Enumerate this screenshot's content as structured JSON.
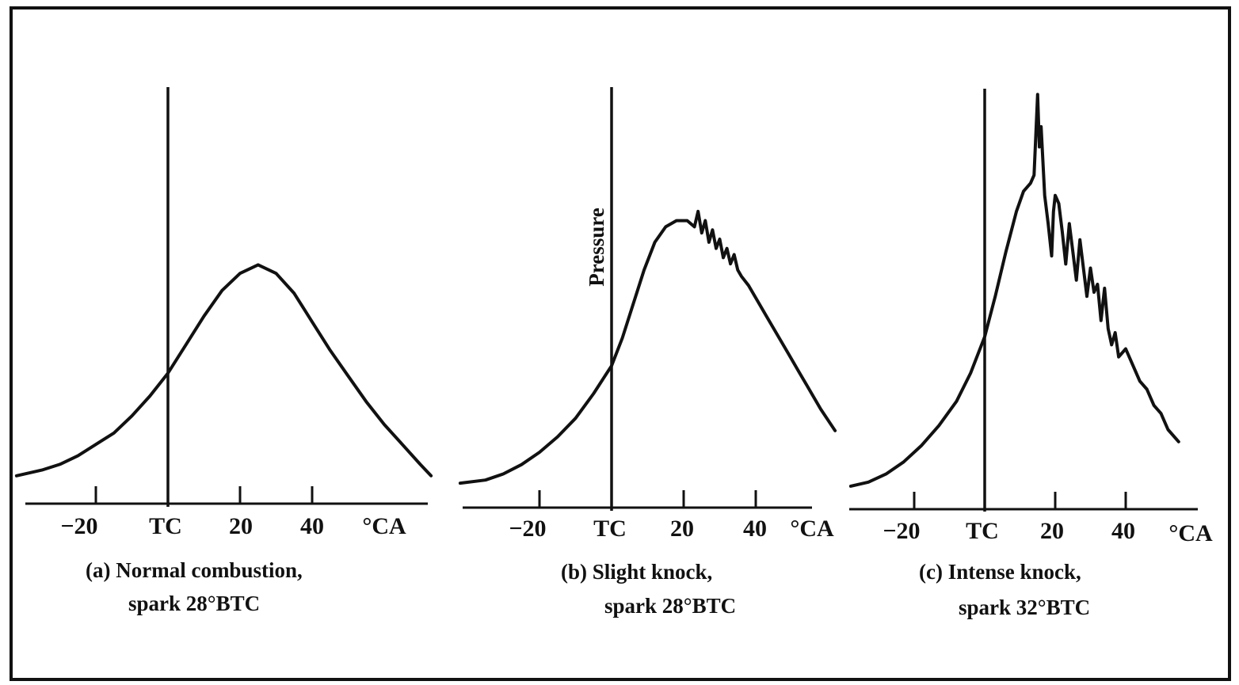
{
  "chart_data": [
    {
      "type": "line",
      "xlabel": "°CA",
      "ylabel": "",
      "x_ticks": [
        -20,
        0,
        20,
        40
      ],
      "x_tick_labels": [
        "−20",
        "TC",
        "20",
        "40"
      ],
      "xlim": [
        -42,
        75
      ],
      "ylim": [
        0,
        100
      ],
      "caption_line1": "(a) Normal combustion,",
      "caption_line2": "spark 28°BTC",
      "series": [
        {
          "x": [
            -42,
            -35,
            -30,
            -25,
            -20,
            -15,
            -10,
            -5,
            0,
            5,
            10,
            15,
            20,
            25,
            30,
            35,
            40,
            45,
            50,
            55,
            60,
            65,
            70,
            73
          ],
          "y": [
            2,
            4,
            6,
            9,
            13,
            17,
            23,
            30,
            38,
            48,
            58,
            67,
            73,
            76,
            73,
            66,
            56,
            46,
            37,
            28,
            20,
            13,
            6,
            2
          ]
        }
      ]
    },
    {
      "type": "line",
      "xlabel": "°CA",
      "ylabel": "Pressure",
      "x_ticks": [
        -20,
        0,
        20,
        40
      ],
      "x_tick_labels": [
        "−20",
        "TC",
        "20",
        "40"
      ],
      "xlim": [
        -42,
        62
      ],
      "ylim": [
        0,
        100
      ],
      "caption_line1": "(b) Slight knock,",
      "caption_line2": "spark 28°BTC",
      "series": [
        {
          "x": [
            -42,
            -35,
            -30,
            -25,
            -20,
            -15,
            -10,
            -5,
            0,
            3,
            6,
            9,
            12,
            15,
            18,
            21,
            23,
            24,
            25,
            26,
            27,
            28,
            29,
            30,
            31,
            32,
            33,
            34,
            35,
            36,
            38,
            40,
            43,
            46,
            49,
            52,
            55,
            58,
            62
          ],
          "y": [
            1,
            2,
            4,
            7,
            11,
            16,
            22,
            30,
            39,
            48,
            59,
            70,
            79,
            84,
            86,
            86,
            84,
            89,
            82,
            86,
            79,
            83,
            77,
            80,
            74,
            77,
            72,
            75,
            70,
            68,
            65,
            61,
            55,
            49,
            43,
            37,
            31,
            25,
            18
          ]
        }
      ]
    },
    {
      "type": "line",
      "xlabel": "°CA",
      "ylabel": "",
      "x_ticks": [
        -20,
        0,
        20,
        40
      ],
      "x_tick_labels": [
        "−20",
        "TC",
        "20",
        "40"
      ],
      "xlim": [
        -38,
        56
      ],
      "ylim": [
        0,
        100
      ],
      "caption_line1": "(c) Intense knock,",
      "caption_line2": "spark 32°BTC",
      "series": [
        {
          "x": [
            -38,
            -33,
            -28,
            -23,
            -18,
            -13,
            -8,
            -4,
            0,
            3,
            6,
            9,
            11,
            13,
            14,
            15,
            15.5,
            16,
            17,
            18,
            19,
            19.5,
            20,
            21,
            22,
            23,
            24,
            25,
            26,
            27,
            28,
            29,
            30,
            31,
            32,
            33,
            34,
            35,
            36,
            37,
            38,
            40,
            42,
            44,
            46,
            48,
            50,
            52,
            55
          ],
          "y": [
            1,
            2,
            4,
            7,
            11,
            16,
            22,
            29,
            38,
            48,
            59,
            69,
            74,
            76,
            78,
            98,
            85,
            90,
            73,
            66,
            58,
            69,
            73,
            71,
            64,
            56,
            66,
            59,
            52,
            62,
            55,
            48,
            55,
            49,
            51,
            42,
            50,
            40,
            36,
            39,
            33,
            35,
            31,
            27,
            25,
            21,
            19,
            15,
            12
          ]
        }
      ]
    }
  ]
}
